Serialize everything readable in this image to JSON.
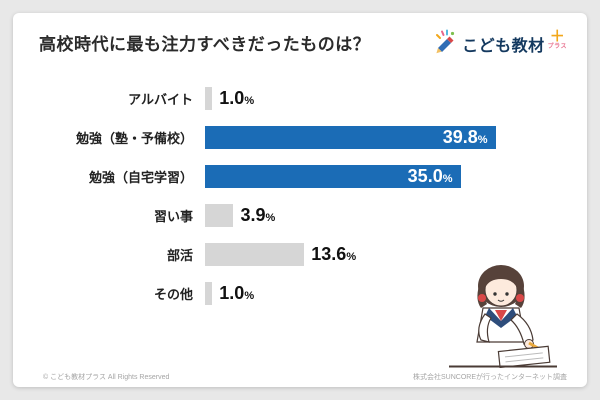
{
  "page": {
    "title": "高校時代に最も注力すべきだったものは？",
    "footer_left": "© こども教材プラス All Rights Reserved",
    "footer_right": "株式会社SUNCOREが行ったインターネット調査"
  },
  "logo": {
    "text": "こども教材",
    "plus": "＋",
    "sub": "プラス"
  },
  "chart_data": {
    "type": "bar",
    "orientation": "horizontal",
    "title": "高校時代に最も注力すべきだったものは？",
    "categories": [
      "アルバイト",
      "勉強（塾・予備校）",
      "勉強（自宅学習）",
      "習い事",
      "部活",
      "その他"
    ],
    "values": [
      1.0,
      39.8,
      35.0,
      3.9,
      13.6,
      1.0
    ],
    "value_suffix": "%",
    "xlim": [
      0,
      40
    ],
    "highlight_indices": [
      1,
      2
    ],
    "colors": {
      "highlight_bar": "#1b6cb6",
      "normal_bar": "#d6d6d6",
      "value_inside": "#ffffff",
      "value_outside": "#111111"
    },
    "legend": false,
    "grid": false
  }
}
